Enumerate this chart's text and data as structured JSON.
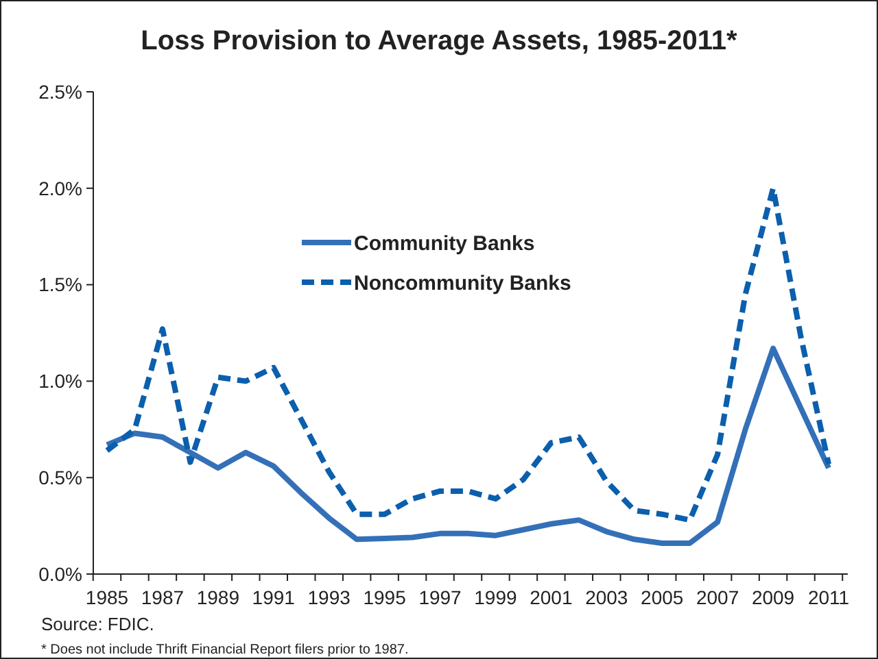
{
  "chart_data": {
    "type": "line",
    "title": "Loss Provision to Average Assets, 1985-2011*",
    "categories": [
      "1985",
      null,
      "1987",
      null,
      "1989",
      null,
      "1991",
      null,
      "1993",
      null,
      "1995",
      null,
      "1997",
      null,
      "1999",
      null,
      "2001",
      null,
      "2003",
      null,
      "2005",
      null,
      "2007",
      null,
      "2009",
      null,
      "2011"
    ],
    "series": [
      {
        "name": "Community Banks",
        "color": "#3470b8",
        "line_style": "solid",
        "values": [
          0.67,
          0.73,
          0.71,
          0.63,
          0.55,
          0.63,
          0.56,
          0.42,
          0.29,
          0.18,
          0.185,
          0.19,
          0.21,
          0.21,
          0.2,
          0.23,
          0.26,
          0.28,
          0.22,
          0.18,
          0.16,
          0.16,
          0.27,
          0.75,
          1.17,
          0.86,
          0.55
        ]
      },
      {
        "name": "Noncommunity Banks",
        "color": "#0b5fad",
        "line_style": "dashed",
        "values": [
          0.64,
          0.75,
          1.27,
          0.58,
          1.02,
          1.0,
          1.07,
          0.8,
          0.53,
          0.31,
          0.31,
          0.39,
          0.43,
          0.43,
          0.39,
          0.49,
          0.68,
          0.71,
          0.48,
          0.33,
          0.31,
          0.28,
          0.62,
          1.45,
          2.0,
          1.23,
          0.57
        ]
      }
    ],
    "ylim": [
      0,
      2.5
    ],
    "yticks": [
      {
        "value": 0,
        "label": "0.0%"
      },
      {
        "value": 0.5,
        "label": "0.5%"
      },
      {
        "value": 1,
        "label": "1.0%"
      },
      {
        "value": 1.5,
        "label": "1.5%"
      },
      {
        "value": 2,
        "label": "2.0%"
      },
      {
        "value": 2.5,
        "label": "2.5%"
      }
    ],
    "grid": false,
    "legend": "top left",
    "marker": "none",
    "annotations": [
      "Source: FDIC.",
      "* Does not include Thrift Financial Report filers prior to 1987."
    ]
  }
}
